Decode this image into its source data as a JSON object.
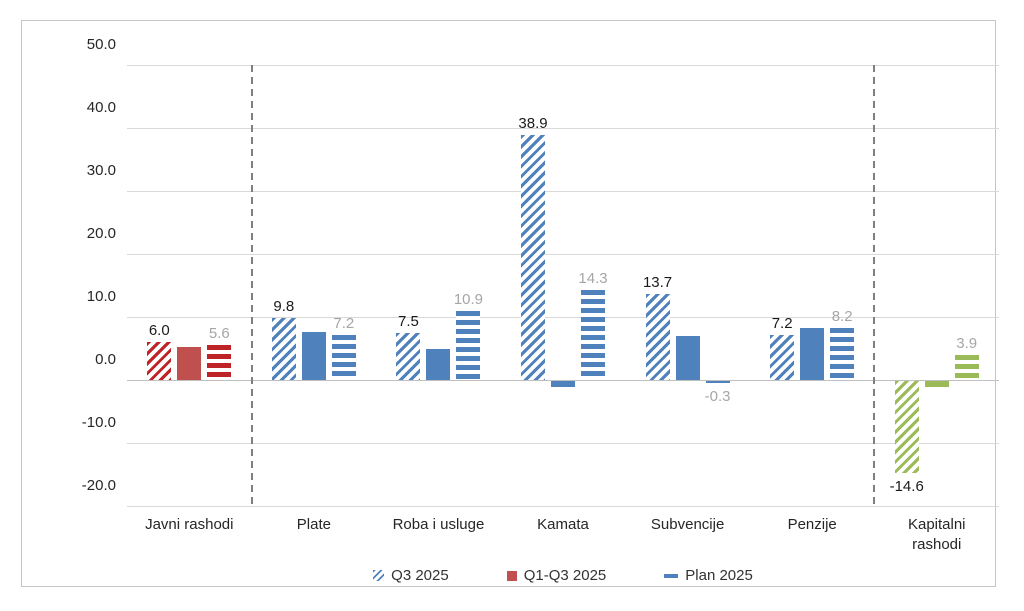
{
  "chart_data": {
    "type": "bar",
    "title": "",
    "categories": [
      "Javni rashodi",
      "Plate",
      "Roba i usluge",
      "Kamata",
      "Subvencije",
      "Penzije",
      "Kapitalni rashodi"
    ],
    "series": [
      {
        "name": "Q3 2025",
        "style": "diagonal-hatch",
        "values": [
          6.0,
          9.8,
          7.5,
          38.9,
          13.7,
          7.2,
          -14.6
        ],
        "data_labels": [
          "6.0",
          "9.8",
          "7.5",
          "38.9",
          "13.7",
          "7.2",
          "-14.6"
        ],
        "label_color": "#1a1a1a"
      },
      {
        "name": "Q1-Q3 2025",
        "style": "solid",
        "values": [
          5.2,
          7.6,
          5.0,
          -1.0,
          7.0,
          8.3,
          -0.9
        ],
        "data_labels": null,
        "label_color": null
      },
      {
        "name": "Plan 2025",
        "style": "horizontal-stripe",
        "values": [
          5.6,
          7.2,
          10.9,
          14.3,
          -0.3,
          8.2,
          3.9
        ],
        "data_labels": [
          "5.6",
          "7.2",
          "10.9",
          "14.3",
          "-0.3",
          "8.2",
          "3.9"
        ],
        "label_color": "#a6a6a6"
      }
    ],
    "category_colors": [
      {
        "solid": "#c0504d",
        "pattern": "#be2328"
      },
      {
        "solid": "#4f81bd",
        "pattern": "#4f81bd"
      },
      {
        "solid": "#4f81bd",
        "pattern": "#4f81bd"
      },
      {
        "solid": "#4f81bd",
        "pattern": "#4f81bd"
      },
      {
        "solid": "#4f81bd",
        "pattern": "#4f81bd"
      },
      {
        "solid": "#4f81bd",
        "pattern": "#4f81bd"
      },
      {
        "solid": "#9bbb59",
        "pattern": "#9bbb59"
      }
    ],
    "ylim": [
      -20,
      50
    ],
    "ytick_step": 10,
    "ytick_labels": [
      "50.0",
      "40.0",
      "30.0",
      "20.0",
      "10.0",
      "0.0",
      "-10.0",
      "-20.0"
    ],
    "grid": true,
    "legend_position": "bottom",
    "separators_before_categories": [
      1,
      6
    ],
    "legend": [
      {
        "label": "Q3 2025",
        "marker": "diagonal-hatch",
        "color": "#4f81bd"
      },
      {
        "label": "Q1-Q3 2025",
        "marker": "solid-square",
        "color": "#c0504d"
      },
      {
        "label": "Plan 2025",
        "marker": "dash",
        "color": "#4f81bd"
      }
    ]
  },
  "colors": {
    "grid_line": "#d9d9d9",
    "zero_line": "#c0c0c0",
    "separator": "#7f7f7f",
    "frame_border": "#c6c6c6",
    "background": "#ffffff",
    "axis_text": "#262626",
    "data_label_black": "#1a1a1a",
    "data_label_gray": "#a6a6a6"
  }
}
